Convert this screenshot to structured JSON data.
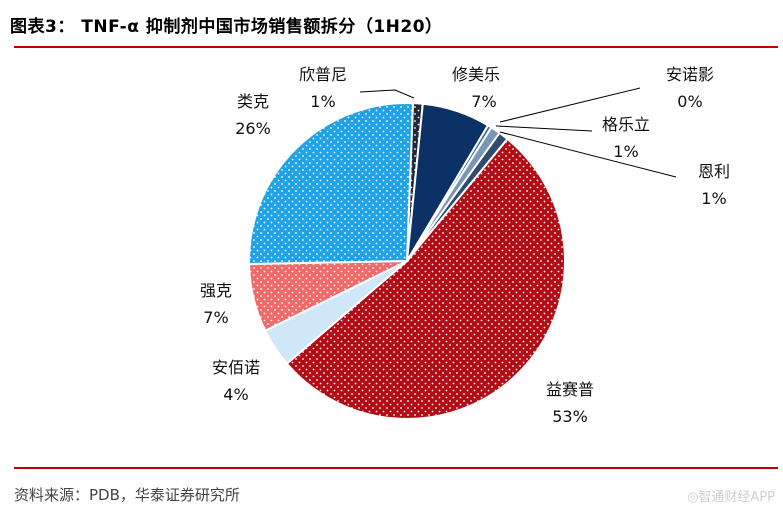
{
  "title": "图表3：   TNF-α 抑制剂中国市场销售额拆分（1H20）",
  "source": "资料来源：PDB，华泰证券研究所",
  "watermark": "◎智通财经APP",
  "chart_data": {
    "type": "pie",
    "title": "TNF-α 抑制剂中国市场销售额拆分（1H20）",
    "unit": "%",
    "slices": [
      {
        "name": "欣普尼",
        "value": 1,
        "label": "1%",
        "color": "#1f2a3a",
        "pattern": "dots"
      },
      {
        "name": "修美乐",
        "value": 7,
        "label": "7%",
        "color": "#0b3166",
        "pattern": "none"
      },
      {
        "name": "安诺影",
        "value": 0,
        "label": "0%",
        "color": "#3d6a97",
        "pattern": "none"
      },
      {
        "name": "格乐立",
        "value": 1,
        "label": "1%",
        "color": "#7a96b5",
        "pattern": "none"
      },
      {
        "name": "恩利",
        "value": 1,
        "label": "1%",
        "color": "#2f4b6e",
        "pattern": "none"
      },
      {
        "name": "益赛普",
        "value": 53,
        "label": "53%",
        "color": "#b00d16",
        "pattern": "dots"
      },
      {
        "name": "安佰诺",
        "value": 4,
        "label": "4%",
        "color": "#cfe7f7",
        "pattern": "none"
      },
      {
        "name": "强克",
        "value": 7,
        "label": "7%",
        "color": "#f06a6a",
        "pattern": "dots"
      },
      {
        "name": "类克",
        "value": 26,
        "label": "26%",
        "color": "#1fa3e6",
        "pattern": "dots"
      }
    ]
  }
}
